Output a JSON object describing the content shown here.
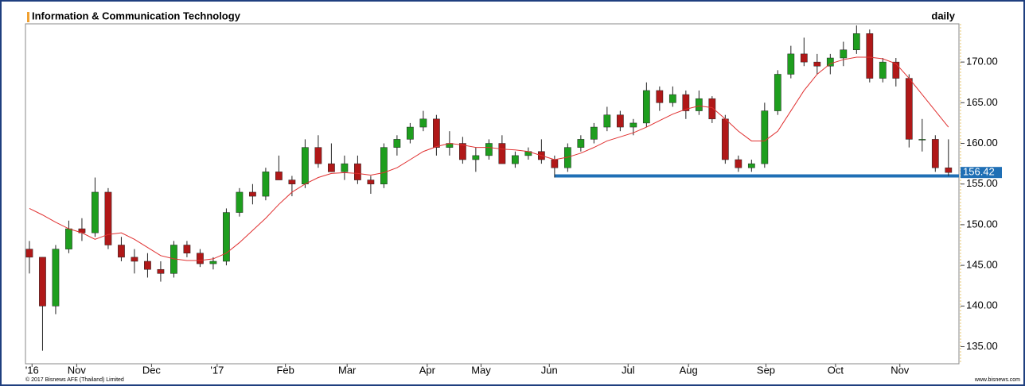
{
  "chart_data": {
    "type": "candlestick",
    "title": "Information & Communication Technology",
    "subtitle": "daily",
    "footer_left": "© 2017 Bisnews AFE (Thailand) Limited",
    "footer_right": "www.bisnews.com",
    "up_color": "#1e9e1e",
    "down_color": "#b01818",
    "ma_color": "#e03030",
    "support_color": "#1f6fb5",
    "open": [
      147,
      146,
      140,
      147,
      149.5,
      149,
      154,
      147.5,
      146,
      145.5,
      144.5,
      144,
      147.5,
      146.5,
      145.2,
      145.5,
      151.5,
      154,
      153.5,
      156.5,
      155.5,
      155,
      159.5,
      157.5,
      156.5,
      157.5,
      155.5,
      155,
      159.5,
      160.5,
      162,
      163,
      159.5,
      160,
      158,
      158.5,
      160,
      157.5,
      158.5,
      159,
      158,
      157,
      159.5,
      160.5,
      162,
      163.5,
      162,
      162.5,
      166.5,
      165,
      166,
      164,
      165.5,
      163,
      158,
      157,
      157.5,
      164,
      168.5,
      171,
      170,
      169.5,
      170.5,
      171.5,
      173.5,
      168,
      170,
      168,
      160.5,
      160.5,
      157
    ],
    "high": [
      148,
      146,
      147.5,
      150.5,
      150.8,
      155.8,
      154.5,
      148.5,
      147,
      146.5,
      145.5,
      148,
      148,
      147,
      146,
      152,
      154.5,
      155,
      157,
      158.5,
      156,
      160.5,
      161,
      160,
      158.5,
      158.5,
      156,
      160,
      161,
      162.5,
      164,
      163.5,
      161.5,
      160.8,
      159.5,
      160.5,
      161,
      159,
      159.5,
      160.5,
      158.5,
      160,
      161,
      162.5,
      164.5,
      164,
      163,
      167.5,
      167,
      167,
      166.5,
      166.5,
      165.8,
      163.5,
      158.5,
      158,
      165,
      169,
      172,
      173,
      171,
      171,
      172.5,
      174.5,
      174,
      170.5,
      170.5,
      168.5,
      163,
      161,
      160.5
    ],
    "low": [
      144,
      134.5,
      139,
      146.5,
      148,
      148.5,
      147,
      145.5,
      144,
      143.5,
      143,
      143.5,
      146,
      144.8,
      144.5,
      145,
      151,
      152.5,
      153,
      155.5,
      153.5,
      154.5,
      157,
      156.5,
      155.5,
      155,
      153.8,
      154.5,
      158.5,
      160,
      161.5,
      158.5,
      158.5,
      157.5,
      156.5,
      158,
      157.5,
      157,
      158,
      157.5,
      155.8,
      156.5,
      159,
      160,
      161.5,
      161.5,
      161,
      162,
      164,
      164.5,
      163,
      163.5,
      162.5,
      157.5,
      156.5,
      156.5,
      157,
      163.5,
      168,
      169.5,
      168.5,
      168.5,
      169.5,
      171,
      167.5,
      167.5,
      167,
      159.5,
      159,
      156.5,
      156
    ],
    "close": [
      146,
      140,
      147,
      149.5,
      149,
      154,
      147.5,
      146,
      145.5,
      144.5,
      144,
      147.5,
      146.5,
      145.2,
      145.5,
      151.5,
      154,
      153.5,
      156.5,
      155.5,
      155,
      159.5,
      157.5,
      156.5,
      157.5,
      155.5,
      155,
      159.5,
      160.5,
      162,
      163,
      159.5,
      160,
      158,
      158.5,
      160,
      157.5,
      158.5,
      159,
      158,
      157,
      159.5,
      160.5,
      162,
      163.5,
      162,
      162.5,
      166.5,
      165,
      166,
      164,
      165.5,
      163,
      158,
      157,
      157.5,
      164,
      168.5,
      171,
      170,
      169.5,
      170.5,
      171.5,
      173.5,
      168,
      170,
      168,
      160.5,
      160.5,
      157,
      156.42
    ],
    "ma": [
      152,
      151.2,
      150.3,
      149.5,
      149,
      148.2,
      148.8,
      149,
      148.2,
      147.2,
      146.2,
      145.8,
      145.6,
      145.6,
      145.8,
      146.5,
      147.8,
      149.3,
      150.8,
      152.5,
      154,
      155,
      155.8,
      156.3,
      156.4,
      156.3,
      156.1,
      156.4,
      157,
      158,
      159,
      159.6,
      160,
      159.8,
      159.5,
      159.5,
      159.3,
      159.2,
      159,
      158.5,
      158,
      158.3,
      158.8,
      159.5,
      160.3,
      160.8,
      161.3,
      162,
      162.8,
      163.6,
      164.2,
      164.6,
      164.4,
      163,
      161.5,
      160.3,
      160.3,
      161.5,
      164,
      166.5,
      168.5,
      169.8,
      170.3,
      170.6,
      170.6,
      170.4,
      169.8,
      168,
      166,
      164,
      162
    ],
    "support": {
      "value": 156,
      "from": 40,
      "to": 70
    },
    "xlim": [
      -0.3,
      70.8
    ],
    "xticks": [
      {
        "value": 0.2,
        "label": "'16"
      },
      {
        "value": 3.6,
        "label": "Nov"
      },
      {
        "value": 9.3,
        "label": "Dec"
      },
      {
        "value": 14.3,
        "label": "'17"
      },
      {
        "value": 19.5,
        "label": "Feb"
      },
      {
        "value": 24.2,
        "label": "Mar"
      },
      {
        "value": 30.3,
        "label": "Apr"
      },
      {
        "value": 34.4,
        "label": "May"
      },
      {
        "value": 39.6,
        "label": "Jun"
      },
      {
        "value": 45.6,
        "label": "Jul"
      },
      {
        "value": 50.2,
        "label": "Aug"
      },
      {
        "value": 56.1,
        "label": "Sep"
      },
      {
        "value": 61.4,
        "label": "Oct"
      },
      {
        "value": 66.3,
        "label": "Nov"
      }
    ],
    "ylim": [
      132.9,
      174.7
    ],
    "yticks": [
      {
        "value": 135,
        "label": "135.00"
      },
      {
        "value": 140,
        "label": "140.00"
      },
      {
        "value": 145,
        "label": "145.00"
      },
      {
        "value": 150,
        "label": "150.00"
      },
      {
        "value": 155,
        "label": "155.00"
      },
      {
        "value": 160,
        "label": "160.00"
      },
      {
        "value": 165,
        "label": "165.00"
      },
      {
        "value": 170,
        "label": "170.00"
      }
    ]
  }
}
